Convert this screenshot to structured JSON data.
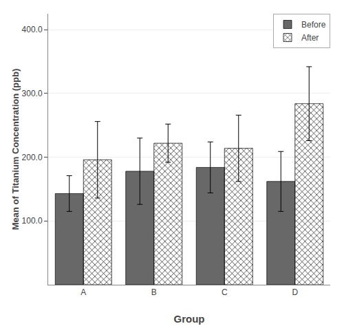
{
  "chart_data": {
    "type": "bar",
    "categories": [
      "A",
      "B",
      "C",
      "D"
    ],
    "series": [
      {
        "name": "Before",
        "color": "#686868",
        "values": [
          143,
          178,
          184,
          162
        ],
        "errors": [
          28,
          52,
          40,
          47
        ]
      },
      {
        "name": "After",
        "color": "#d8d8d8",
        "marker": "hatch",
        "values": [
          196,
          222,
          214,
          284
        ],
        "errors": [
          60,
          30,
          52,
          58
        ]
      }
    ],
    "x_label": "Group",
    "y_label": "Mean of Titanium Concentration (ppb)",
    "ylim": [
      0,
      425
    ],
    "yticks": [
      {
        "value": 100,
        "label": "100.0"
      },
      {
        "value": 200,
        "label": "200.0"
      },
      {
        "value": 300,
        "label": "300.0"
      },
      {
        "value": 400,
        "label": "400.0"
      }
    ],
    "grid": true,
    "legend": "upper right"
  }
}
